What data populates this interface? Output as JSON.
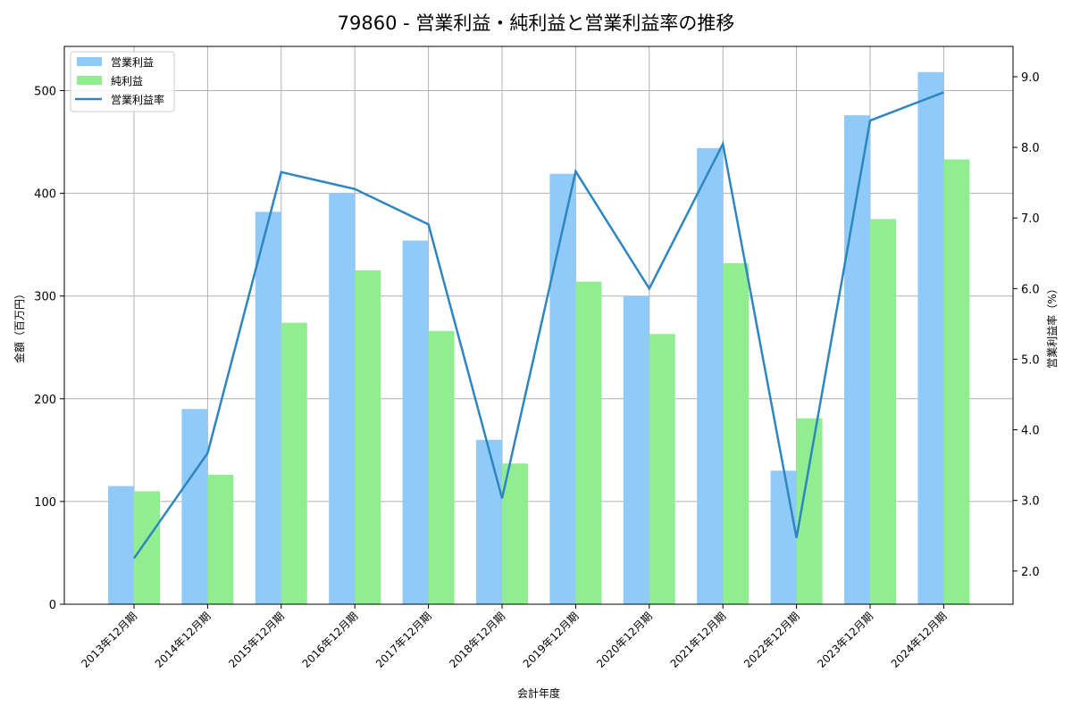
{
  "chart_data": {
    "type": "bar",
    "title": "79860 - 営業利益・純利益と営業利益率の推移",
    "xlabel": "会計年度",
    "ylabel": "金額（百万円）",
    "y2label": "営業利益率（%）",
    "categories": [
      "2013年12月期",
      "2014年12月期",
      "2015年12月期",
      "2016年12月期",
      "2017年12月期",
      "2018年12月期",
      "2019年12月期",
      "2020年12月期",
      "2021年12月期",
      "2022年12月期",
      "2023年12月期",
      "2024年12月期"
    ],
    "series": [
      {
        "name": "営業利益",
        "type": "bar",
        "axis": "left",
        "color": "#90CAF9",
        "values": [
          115,
          190,
          382,
          400,
          354,
          160,
          419,
          300,
          444,
          130,
          476,
          518
        ]
      },
      {
        "name": "純利益",
        "type": "bar",
        "axis": "left",
        "color": "#90EE90",
        "values": [
          110,
          126,
          274,
          325,
          266,
          137,
          314,
          263,
          332,
          181,
          375,
          433
        ]
      },
      {
        "name": "営業利益率",
        "type": "line",
        "axis": "right",
        "color": "#2E86C1",
        "values": [
          2.18,
          3.67,
          7.65,
          7.41,
          6.91,
          3.03,
          7.66,
          6.0,
          8.05,
          2.47,
          8.38,
          8.78
        ]
      }
    ],
    "ylim": [
      0,
      543
    ],
    "y2lim": [
      1.53,
      9.43
    ],
    "yticks": [
      0,
      100,
      200,
      300,
      400,
      500
    ],
    "y2ticks": [
      "2.0",
      "3.0",
      "4.0",
      "5.0",
      "6.0",
      "7.0",
      "8.0",
      "9.0"
    ],
    "grid": true,
    "legend_position": "upper left"
  }
}
